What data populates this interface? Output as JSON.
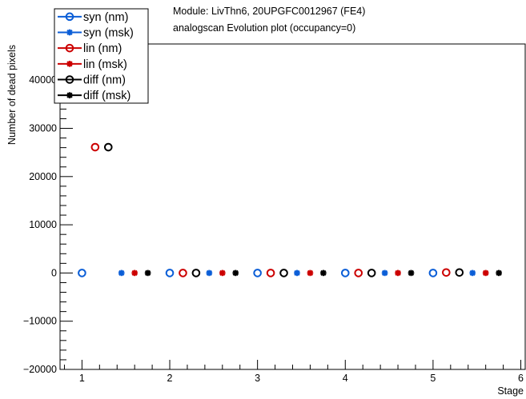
{
  "chart_data": {
    "type": "scatter",
    "title": "Module: LivThn6, 20UPGFC0012967 (FE4)",
    "subtitle": "analogscan Evolution plot (occupancy=0)",
    "xlabel": "Stage",
    "ylabel": "Number of dead pixels",
    "xlim": [
      0.75,
      6.05
    ],
    "ylim": [
      -20000,
      47500
    ],
    "x_ticks": [
      1,
      2,
      3,
      4,
      5,
      6
    ],
    "x_tick_labels": [
      "1",
      "2",
      "3",
      "4",
      "5",
      "6"
    ],
    "y_ticks": [
      -20000,
      -10000,
      0,
      10000,
      20000,
      30000,
      40000
    ],
    "y_tick_labels": [
      "−20000",
      "−10000",
      "0",
      "10000",
      "20000",
      "30000",
      "40000"
    ],
    "grid": false,
    "legend_position": "top-left",
    "series": [
      {
        "name": "syn (nm)",
        "color": "#0b5ed7",
        "marker": "open-circle",
        "x": [
          1.0,
          2.0,
          3.0,
          4.0,
          5.0
        ],
        "values": [
          0,
          0,
          0,
          0,
          0
        ]
      },
      {
        "name": "syn (msk)",
        "color": "#0b5ed7",
        "marker": "star",
        "x": [
          1.45,
          2.45,
          3.45,
          4.45,
          5.45
        ],
        "values": [
          0,
          0,
          0,
          0,
          0
        ]
      },
      {
        "name": "lin (nm)",
        "color": "#cc0000",
        "marker": "open-circle",
        "x": [
          1.15,
          2.15,
          3.15,
          4.15,
          5.15
        ],
        "values": [
          26100,
          0,
          0,
          0,
          100
        ]
      },
      {
        "name": "lin (msk)",
        "color": "#cc0000",
        "marker": "star",
        "x": [
          1.6,
          2.6,
          3.6,
          4.6,
          5.6
        ],
        "values": [
          0,
          0,
          0,
          0,
          0
        ]
      },
      {
        "name": "diff (nm)",
        "color": "#000000",
        "marker": "open-circle",
        "x": [
          1.3,
          2.3,
          3.3,
          4.3,
          5.3
        ],
        "values": [
          26100,
          0,
          0,
          0,
          100
        ]
      },
      {
        "name": "diff (msk)",
        "color": "#000000",
        "marker": "star",
        "x": [
          1.75,
          2.75,
          3.75,
          4.75,
          5.75
        ],
        "values": [
          0,
          0,
          0,
          0,
          0
        ]
      }
    ]
  }
}
